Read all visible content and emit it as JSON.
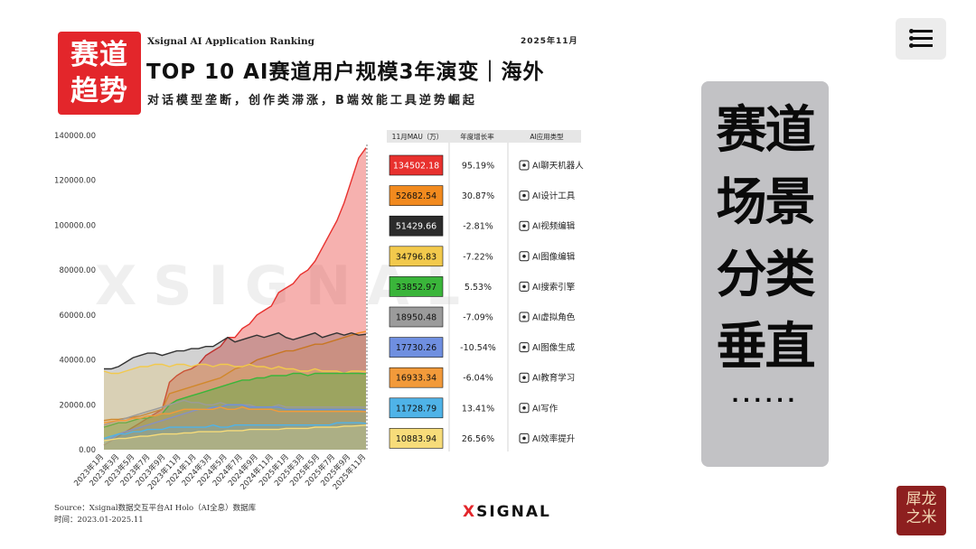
{
  "header": {
    "logo_line1": "赛道",
    "logo_line2": "趋势",
    "subtitle_en": "Xsignal AI Application Ranking",
    "date": "2025年11月",
    "title": "TOP 10 AI赛道用户规模3年演变｜海外",
    "subtitle": "对话模型垄断，创作类滞涨，B端效能工具逆势崛起"
  },
  "table_headers": {
    "mau": "11月MAU（万）",
    "growth": "年度增长率",
    "type": "AI应用类型"
  },
  "rows": [
    {
      "mau": "134502.18",
      "growth": "95.19%",
      "type": "AI聊天机器人",
      "icon": "robot-icon",
      "color": "#e8312e",
      "text_color": "#ffffff"
    },
    {
      "mau": "52682.54",
      "growth": "30.87%",
      "type": "AI设计工具",
      "icon": "palette-icon",
      "color": "#f28a1e",
      "text_color": "#111111"
    },
    {
      "mau": "51429.66",
      "growth": "-2.81%",
      "type": "AI视频编辑",
      "icon": "video-icon",
      "color": "#2b2b2b",
      "text_color": "#ffffff"
    },
    {
      "mau": "34796.83",
      "growth": "-7.22%",
      "type": "AI图像编辑",
      "icon": "image-edit-icon",
      "color": "#f2c94c",
      "text_color": "#111111"
    },
    {
      "mau": "33852.97",
      "growth": "5.53%",
      "type": "AI搜索引擎",
      "icon": "search-engine-icon",
      "color": "#3ab53a",
      "text_color": "#111111"
    },
    {
      "mau": "18950.48",
      "growth": "-7.09%",
      "type": "AI虚拟角色",
      "icon": "avatar-icon",
      "color": "#9b9b9b",
      "text_color": "#111111"
    },
    {
      "mau": "17730.26",
      "growth": "-10.54%",
      "type": "AI图像生成",
      "icon": "image-icon",
      "color": "#6f8fe0",
      "text_color": "#111111"
    },
    {
      "mau": "16933.34",
      "growth": "-6.04%",
      "type": "AI教育学习",
      "icon": "graduation-icon",
      "color": "#f29a3a",
      "text_color": "#111111"
    },
    {
      "mau": "11728.79",
      "growth": "13.41%",
      "type": "AI写作",
      "icon": "pen-icon",
      "color": "#4fb3e8",
      "text_color": "#111111"
    },
    {
      "mau": "10883.94",
      "growth": "26.56%",
      "type": "AI效率提升",
      "icon": "rocket-icon",
      "color": "#f7dc7a",
      "text_color": "#111111"
    }
  ],
  "side_panel": {
    "words": [
      "赛道",
      "场景",
      "分类",
      "垂直"
    ],
    "dots": "......"
  },
  "footer": {
    "source": "Source：Xsignal数据交互平台AI Holo（AI全息）数据库",
    "time": "时间：2023.01-2025.11",
    "brand_x": "X",
    "brand_text": "SIGNAL",
    "watermark": "XSIGNAL",
    "stamp_line1": "犀龙",
    "stamp_line2": "之米"
  },
  "chart_data": {
    "type": "area",
    "ylim": [
      0,
      140000
    ],
    "yticks": [
      "0.00",
      "20000.00",
      "40000.00",
      "60000.00",
      "80000.00",
      "100000.00",
      "120000.00",
      "140000.00"
    ],
    "x_labels": [
      "2023年1月",
      "2023年3月",
      "2023年5月",
      "2023年7月",
      "2023年9月",
      "2023年11月",
      "2024年1月",
      "2024年3月",
      "2024年5月",
      "2024年7月",
      "2024年9月",
      "2024年11月",
      "2025年1月",
      "2025年3月",
      "2025年5月",
      "2025年7月",
      "2025年9月",
      "2025年11月"
    ],
    "series": [
      {
        "name": "AI聊天机器人",
        "color": "#e8312e",
        "fill_opacity": 0.38,
        "values": [
          2000,
          4000,
          6000,
          8000,
          10000,
          12000,
          14000,
          16000,
          18000,
          30000,
          33000,
          35000,
          36000,
          38000,
          42000,
          44000,
          46000,
          50000,
          50000,
          54000,
          56000,
          60000,
          62000,
          64000,
          70000,
          72000,
          74000,
          78000,
          80000,
          84000,
          90000,
          96000,
          102000,
          110000,
          120000,
          130000,
          134502
        ]
      },
      {
        "name": "AI设计工具",
        "color": "#f28a1e",
        "fill_opacity": 0.15,
        "values": [
          13000,
          13500,
          13500,
          14000,
          14500,
          15000,
          16000,
          17000,
          18000,
          25000,
          26000,
          27000,
          28000,
          29000,
          30000,
          31000,
          32000,
          34000,
          36000,
          37000,
          38000,
          40000,
          41000,
          42000,
          43000,
          44000,
          44000,
          45000,
          46000,
          47000,
          47000,
          48000,
          49000,
          50000,
          51000,
          52000,
          52683
        ]
      },
      {
        "name": "AI视频编辑",
        "color": "#333333",
        "fill_opacity": 0.22,
        "values": [
          36000,
          36000,
          37000,
          39000,
          41000,
          42000,
          43000,
          43000,
          42000,
          43000,
          44000,
          44000,
          45000,
          45000,
          46000,
          46000,
          48000,
          50000,
          48000,
          49000,
          50000,
          51000,
          50000,
          51000,
          52000,
          50000,
          49000,
          50000,
          51000,
          52000,
          50000,
          51000,
          52000,
          51000,
          52000,
          51000,
          51430
        ]
      },
      {
        "name": "AI图像编辑",
        "color": "#f2c94c",
        "fill_opacity": 0.22,
        "values": [
          35000,
          34000,
          34000,
          35000,
          36000,
          37000,
          37000,
          38000,
          38000,
          37000,
          38000,
          38000,
          37000,
          38000,
          38000,
          37000,
          38000,
          38000,
          37000,
          37000,
          38000,
          37000,
          37000,
          36000,
          37000,
          36000,
          36000,
          35000,
          35000,
          36000,
          35000,
          35000,
          35000,
          34000,
          35000,
          35000,
          34797
        ]
      },
      {
        "name": "AI搜索引擎",
        "color": "#3ab53a",
        "fill_opacity": 0.35,
        "values": [
          10000,
          11000,
          12000,
          12000,
          13000,
          14000,
          14000,
          15000,
          16000,
          20000,
          22000,
          23000,
          24000,
          25000,
          26000,
          27000,
          28000,
          29000,
          30000,
          31000,
          31000,
          32000,
          32000,
          33000,
          33000,
          33000,
          34000,
          34000,
          33000,
          34000,
          34000,
          34000,
          34000,
          34000,
          34000,
          34000,
          33853
        ]
      },
      {
        "name": "AI虚拟角色",
        "color": "#9b9b9b",
        "fill_opacity": 0.2,
        "values": [
          11000,
          12000,
          13000,
          14000,
          15000,
          16000,
          17000,
          18000,
          19000,
          20000,
          21000,
          22000,
          21000,
          21000,
          20000,
          20000,
          21000,
          20000,
          20000,
          20000,
          20000,
          19000,
          19000,
          19000,
          20000,
          19000,
          19000,
          19000,
          19000,
          19000,
          19000,
          19000,
          19000,
          19000,
          19000,
          19000,
          18950
        ]
      },
      {
        "name": "AI图像生成",
        "color": "#6f8fe0",
        "fill_opacity": 0.2,
        "values": [
          4000,
          5000,
          7000,
          8000,
          9000,
          10000,
          11000,
          12000,
          13000,
          14000,
          15000,
          16000,
          17000,
          18000,
          18000,
          19000,
          19000,
          20000,
          20000,
          20000,
          19000,
          19000,
          19000,
          19000,
          19000,
          18000,
          18000,
          18000,
          18000,
          18000,
          18000,
          18000,
          18000,
          18000,
          18000,
          18000,
          17730
        ]
      },
      {
        "name": "AI教育学习",
        "color": "#f29a3a",
        "fill_opacity": 0.18,
        "values": [
          12000,
          12500,
          13000,
          13000,
          14000,
          14000,
          15000,
          15000,
          16000,
          16000,
          17000,
          18000,
          18000,
          18000,
          18000,
          18000,
          19000,
          18000,
          18000,
          19000,
          18000,
          18000,
          18000,
          18000,
          17000,
          17000,
          17000,
          17000,
          17000,
          17000,
          17000,
          17000,
          17000,
          17000,
          17000,
          17000,
          16933
        ]
      },
      {
        "name": "AI写作",
        "color": "#4fb3e8",
        "fill_opacity": 0.18,
        "values": [
          5000,
          6000,
          7000,
          7000,
          8000,
          8000,
          9000,
          9000,
          9000,
          10000,
          10000,
          10000,
          10000,
          10000,
          10000,
          11000,
          10000,
          10000,
          11000,
          11000,
          11000,
          11000,
          11000,
          11000,
          11000,
          11000,
          11000,
          11000,
          11000,
          11000,
          11000,
          11000,
          12000,
          12000,
          12000,
          12000,
          11729
        ]
      },
      {
        "name": "AI效率提升",
        "color": "#f7dc7a",
        "fill_opacity": 0.25,
        "values": [
          4000,
          4500,
          5000,
          5000,
          5500,
          6000,
          6000,
          6500,
          7000,
          7000,
          7000,
          7500,
          7500,
          8000,
          8000,
          8000,
          8000,
          8500,
          8500,
          8500,
          9000,
          9000,
          9000,
          9000,
          9000,
          9500,
          9500,
          9500,
          9500,
          10000,
          10000,
          10000,
          10000,
          10500,
          10500,
          10700,
          10884
        ]
      }
    ]
  }
}
